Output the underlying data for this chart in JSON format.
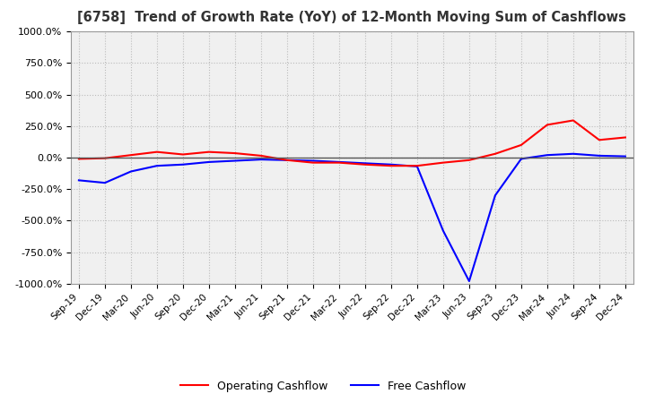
{
  "title": "[6758]  Trend of Growth Rate (YoY) of 12-Month Moving Sum of Cashflows",
  "title_color": "#333333",
  "background_color": "#ffffff",
  "plot_background": "#f0f0f0",
  "grid_color": "#bbbbbb",
  "grid_style": "dotted",
  "ylim": [
    -1000,
    1000
  ],
  "yticks": [
    -1000,
    -750,
    -500,
    -250,
    0,
    250,
    500,
    750,
    1000
  ],
  "ytick_labels": [
    "-1000.0%",
    "-750.0%",
    "-500.0%",
    "-250.0%",
    "0.0%",
    "250.0%",
    "500.0%",
    "750.0%",
    "1000.0%"
  ],
  "operating_cashflow_color": "#ff0000",
  "free_cashflow_color": "#0000ff",
  "operating_cashflow_label": "Operating Cashflow",
  "free_cashflow_label": "Free Cashflow",
  "dates": [
    "Sep-19",
    "Dec-19",
    "Mar-20",
    "Jun-20",
    "Sep-20",
    "Dec-20",
    "Mar-21",
    "Jun-21",
    "Sep-21",
    "Dec-21",
    "Mar-22",
    "Jun-22",
    "Sep-22",
    "Dec-22",
    "Mar-23",
    "Jun-23",
    "Sep-23",
    "Dec-23",
    "Mar-24",
    "Jun-24",
    "Sep-24",
    "Dec-24"
  ],
  "operating_cashflow": [
    -10,
    -5,
    20,
    45,
    25,
    45,
    35,
    15,
    -20,
    -40,
    -40,
    -55,
    -65,
    -65,
    -40,
    -20,
    30,
    100,
    260,
    295,
    140,
    160
  ],
  "free_cashflow": [
    -180,
    -200,
    -110,
    -65,
    -55,
    -35,
    -25,
    -15,
    -20,
    -25,
    -35,
    -45,
    -55,
    -70,
    -580,
    -980,
    -300,
    -10,
    20,
    30,
    15,
    10
  ]
}
